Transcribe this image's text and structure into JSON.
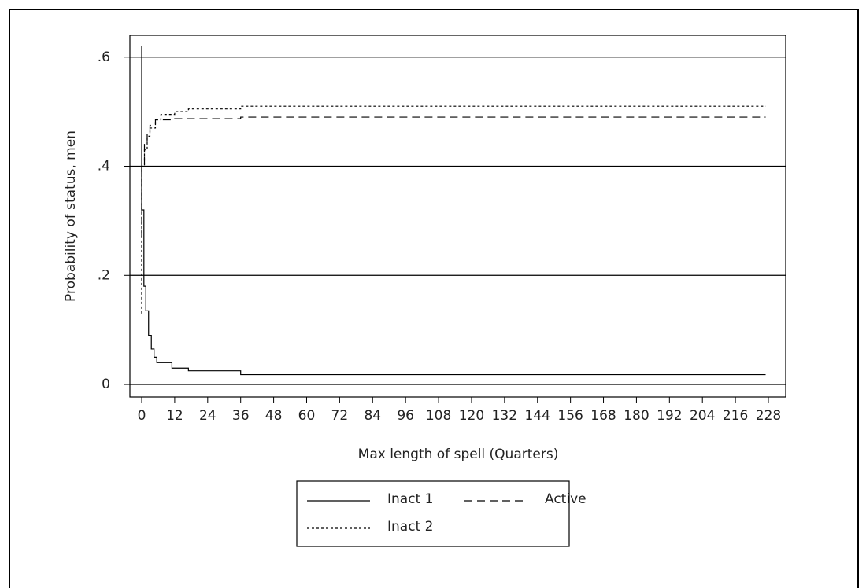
{
  "chart_data": {
    "type": "line",
    "xlabel": "Max length of spell (Quarters)",
    "ylabel": "Probability of status, men",
    "xlim": [
      -4.3,
      234.3
    ],
    "ylim": [
      -0.023,
      0.64
    ],
    "xticks": [
      0,
      12,
      24,
      36,
      48,
      60,
      72,
      84,
      96,
      108,
      120,
      132,
      144,
      156,
      168,
      180,
      192,
      204,
      216,
      228
    ],
    "yticks": [
      0,
      {
        "value": 0.2,
        "label": ".2"
      },
      {
        "value": 0.4,
        "label": ".4"
      },
      {
        "value": 0.6,
        "label": ".6"
      }
    ],
    "grid": true,
    "series": [
      {
        "name": "Inact 1",
        "color": "#000000",
        "dash": "solid",
        "x": [
          0,
          0,
          0.8,
          0.8,
          1.5,
          1.5,
          2.5,
          2.5,
          3.5,
          3.5,
          4.5,
          4.5,
          5.5,
          5.5,
          11,
          11,
          17,
          17,
          36,
          36,
          227
        ],
        "values": [
          0.62,
          0.32,
          0.32,
          0.18,
          0.18,
          0.135,
          0.135,
          0.09,
          0.09,
          0.065,
          0.065,
          0.05,
          0.05,
          0.04,
          0.04,
          0.03,
          0.03,
          0.025,
          0.025,
          0.018,
          0.018
        ]
      },
      {
        "name": "Active",
        "color": "#000000",
        "dash": "dashed",
        "x": [
          0,
          0,
          1,
          1,
          2,
          2,
          3,
          3,
          5,
          5,
          12,
          12,
          36,
          36,
          227
        ],
        "values": [
          0.27,
          0.4,
          0.4,
          0.44,
          0.44,
          0.46,
          0.46,
          0.475,
          0.475,
          0.485,
          0.485,
          0.487,
          0.487,
          0.49,
          0.49
        ]
      },
      {
        "name": "Inact 2",
        "color": "#000000",
        "dash": "dotted",
        "x": [
          0,
          0,
          1,
          1,
          2,
          2,
          3,
          3,
          5,
          5,
          7,
          7,
          12,
          12,
          17,
          17,
          36,
          36,
          227
        ],
        "values": [
          0.13,
          0.4,
          0.4,
          0.43,
          0.43,
          0.455,
          0.455,
          0.47,
          0.47,
          0.485,
          0.485,
          0.495,
          0.495,
          0.5,
          0.5,
          0.505,
          0.505,
          0.51,
          0.51
        ]
      }
    ]
  }
}
